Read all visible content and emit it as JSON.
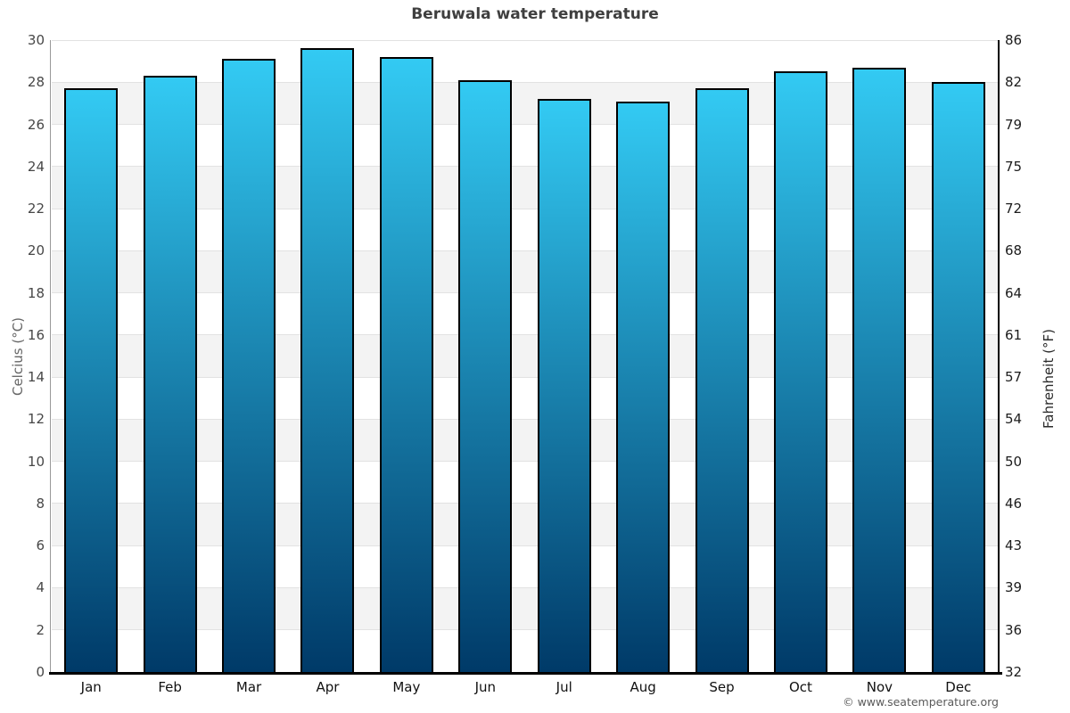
{
  "page": {
    "copyright": "© www.seatemperature.org"
  },
  "chart_data": {
    "type": "bar",
    "title": "Beruwala water temperature",
    "categories": [
      "Jan",
      "Feb",
      "Mar",
      "Apr",
      "May",
      "Jun",
      "Jul",
      "Aug",
      "Sep",
      "Oct",
      "Nov",
      "Dec"
    ],
    "values": [
      27.7,
      28.3,
      29.1,
      29.6,
      29.2,
      28.1,
      27.2,
      27.1,
      27.7,
      28.5,
      28.7,
      28.0
    ],
    "ylabel_left": "Celcius (°C)",
    "ylabel_right": "Fahrenheit (°F)",
    "ylim": [
      0,
      30
    ],
    "yticks_celsius": [
      30,
      28,
      26,
      24,
      22,
      20,
      18,
      16,
      14,
      12,
      10,
      8,
      6,
      4,
      2,
      0
    ],
    "yticks_fahrenheit": [
      86,
      82,
      79,
      75,
      72,
      68,
      64,
      61,
      57,
      54,
      50,
      46,
      43,
      39,
      36,
      32
    ],
    "grid": true,
    "legend": "none",
    "colors": {
      "bar_gradient_top": "#33CAF3",
      "bar_gradient_bottom": "#003A68",
      "bar_border": "#000000",
      "band_fill": "#F3F3F3",
      "gridline": "#E2E2E2",
      "left_axis_line": "#999999",
      "right_axis_line": "#000000",
      "bottom_axis_line": "#000000",
      "title_color": "#3F3F3F"
    }
  }
}
